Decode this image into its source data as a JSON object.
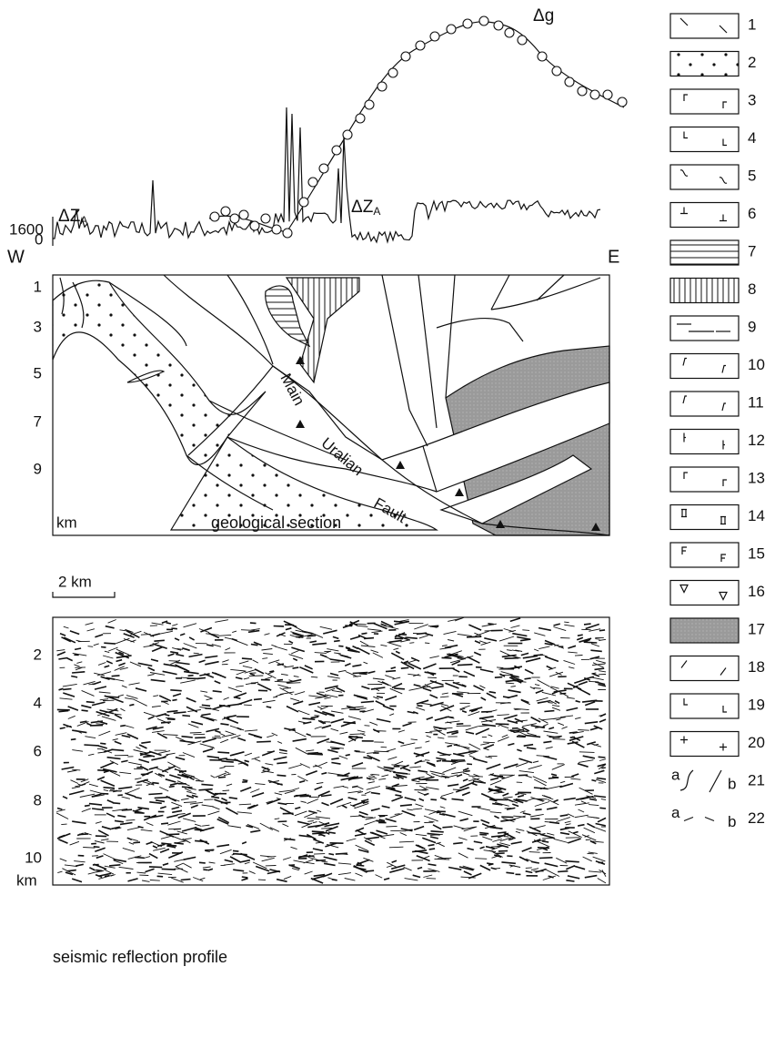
{
  "profile": {
    "tick_labels": [
      "1600",
      "0"
    ],
    "gravity_label": "Δg",
    "magnetic_label": {
      "symbol": "ΔZ",
      "subscript": "A"
    }
  },
  "section": {
    "west": "W",
    "east": "E",
    "depth_labels": [
      "1",
      "3",
      "5",
      "7",
      "9"
    ],
    "depth_unit": "km",
    "fault_label": [
      "Main",
      "Uralian",
      "Fault"
    ],
    "caption": "geological section"
  },
  "scale_bar": "2 km",
  "seismic": {
    "depth_labels": [
      "2",
      "4",
      "6",
      "8",
      "10"
    ],
    "depth_unit": "km",
    "caption": "seismic reflection profile"
  },
  "legend": {
    "items": [
      "1",
      "2",
      "3",
      "4",
      "5",
      "6",
      "7",
      "8",
      "9",
      "10",
      "11",
      "12",
      "13",
      "14",
      "15",
      "16",
      "17",
      "18",
      "19",
      "20",
      "21",
      "22"
    ],
    "variants": [
      "a",
      "b"
    ]
  }
}
